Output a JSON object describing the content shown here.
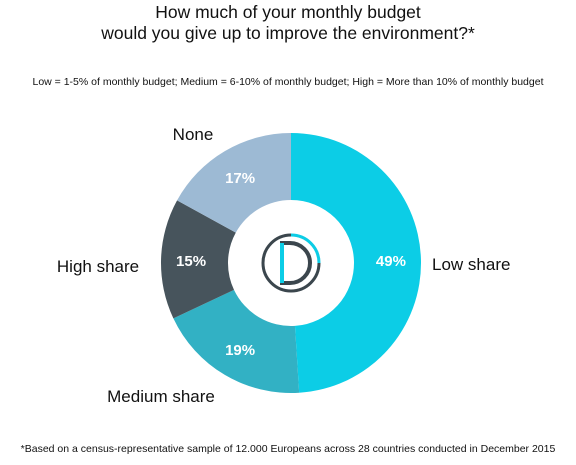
{
  "title_lines": [
    "How much of your monthly budget",
    "would you give up to improve the environment?*"
  ],
  "subtitle": "Low = 1-5% of monthly budget; Medium = 6-10% of monthly budget; High = More than 10% of monthly budget",
  "footnote": "*Based on a census-representative sample of 12.000 Europeans across 28 countries conducted in December 2015",
  "logo_icon": "d-logo-icon",
  "chart_data": {
    "type": "pie",
    "title": "How much of your monthly budget would you give up to improve the environment?*",
    "donut": true,
    "slices": [
      {
        "label": "Low share",
        "value": 49,
        "value_label": "49%",
        "color": "#0ccde6"
      },
      {
        "label": "Medium share",
        "value": 19,
        "value_label": "19%",
        "color": "#32b1c4"
      },
      {
        "label": "High share",
        "value": 15,
        "value_label": "15%",
        "color": "#47545c"
      },
      {
        "label": "None",
        "value": 17,
        "value_label": "17%",
        "color": "#9dbad4"
      }
    ],
    "start": "12 o'clock",
    "direction": "clockwise"
  }
}
